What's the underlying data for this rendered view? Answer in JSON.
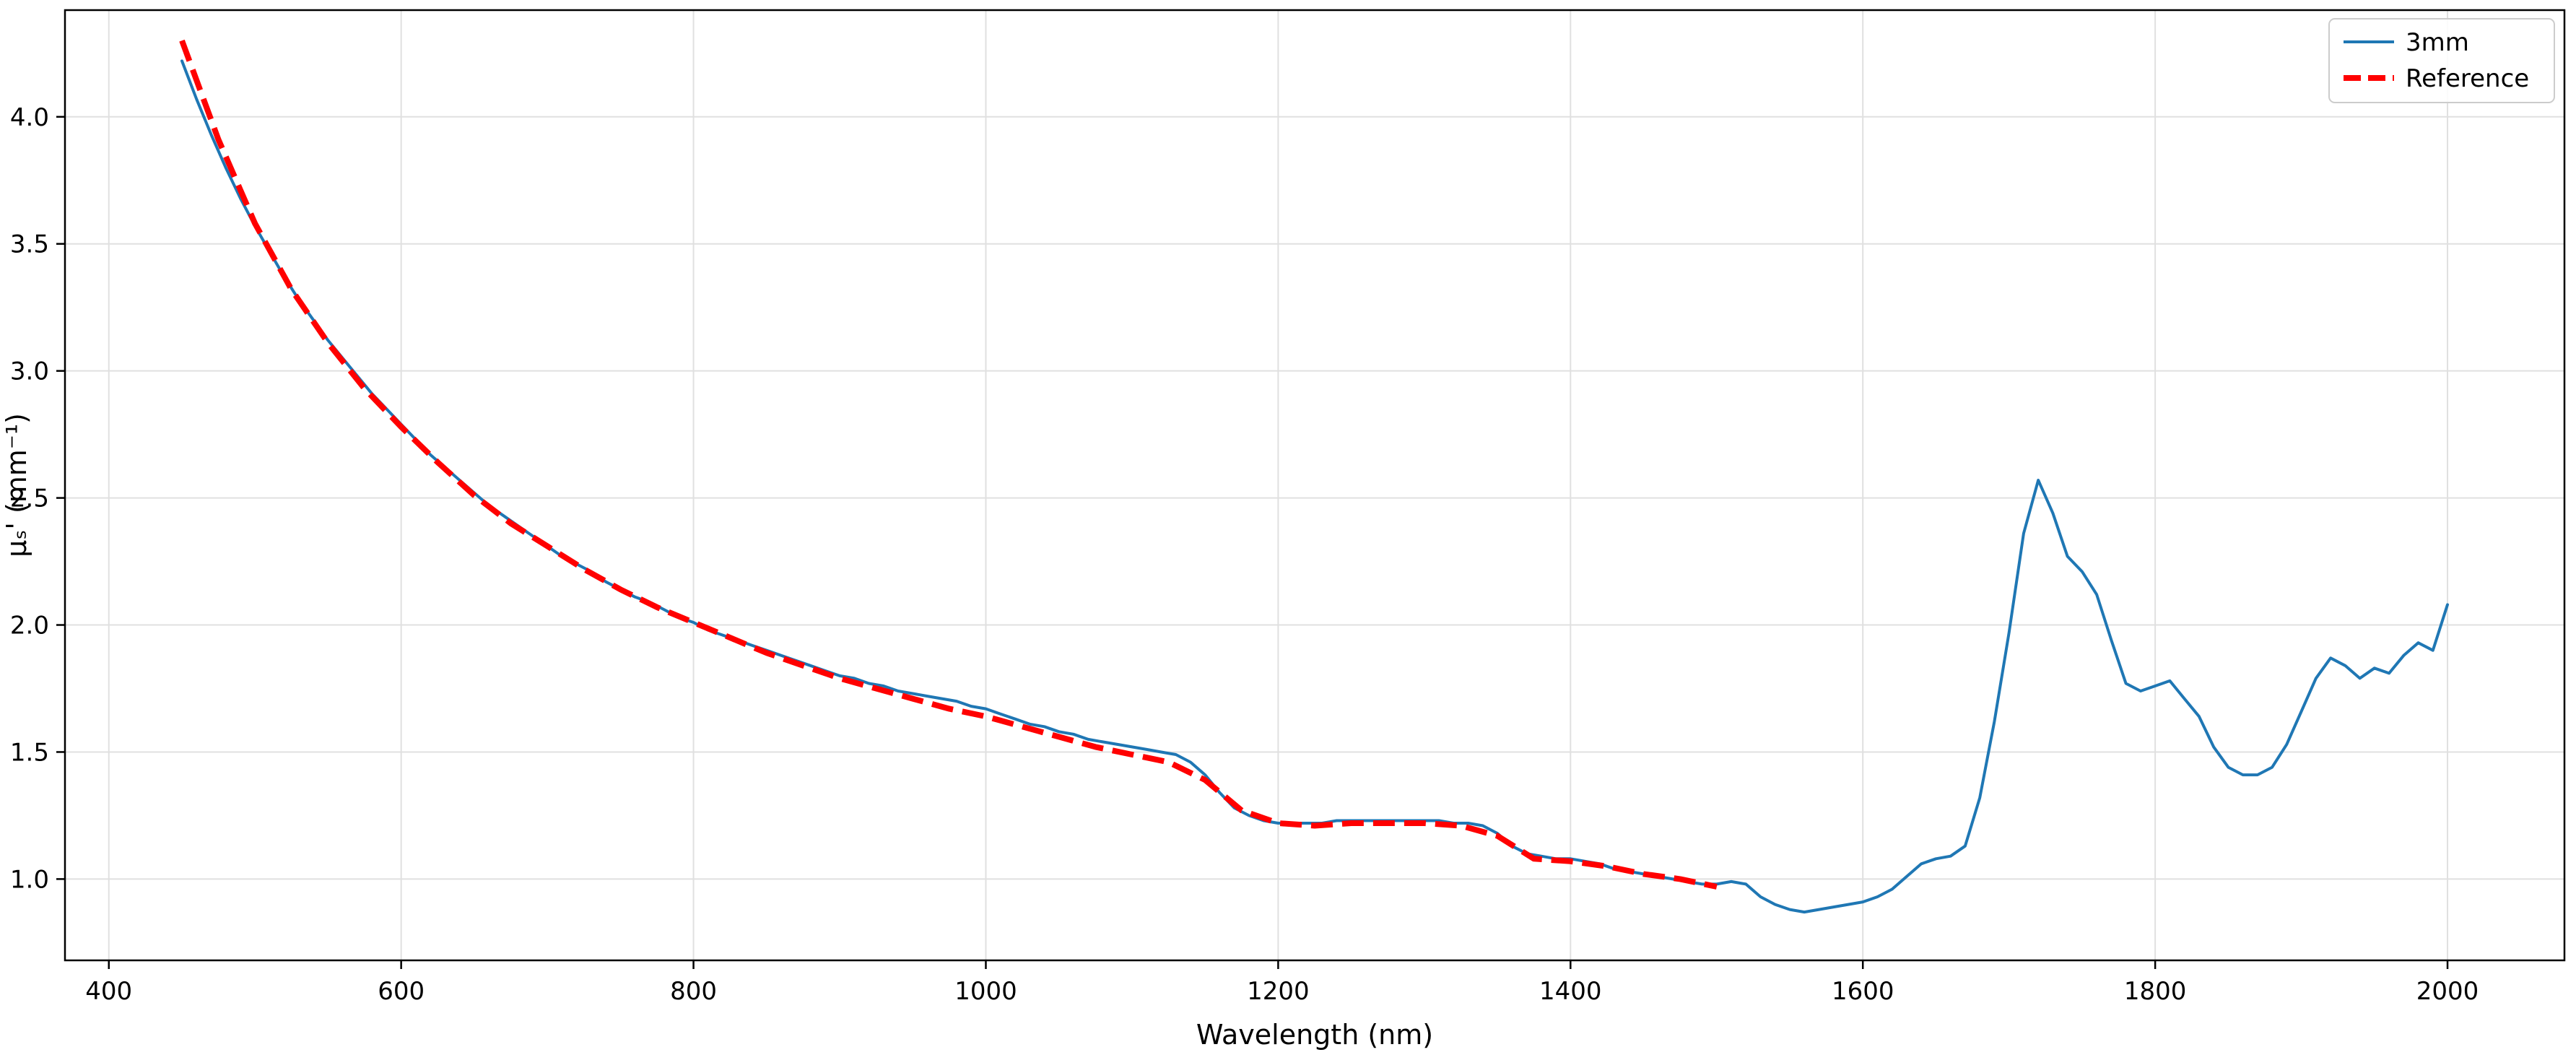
{
  "figure": {
    "background": "#ffffff"
  },
  "chart_data": {
    "type": "line",
    "title": "",
    "xlabel": "Wavelength (nm)",
    "ylabel": "μₛ' (mm⁻¹)",
    "xlim": [
      370,
      2080
    ],
    "ylim": [
      0.68,
      4.42
    ],
    "xticks": [
      400,
      600,
      800,
      1000,
      1200,
      1400,
      1600,
      1800,
      2000
    ],
    "yticks": [
      1.0,
      1.5,
      2.0,
      2.5,
      3.0,
      3.5,
      4.0
    ],
    "grid": true,
    "grid_color": "#e0e0e0",
    "axis_color": "#000000",
    "legend": {
      "position": "upper right",
      "frame": true,
      "border_color": "#cccccc",
      "background": "#ffffff"
    },
    "series": [
      {
        "name": "3mm",
        "color": "#1f77b4",
        "style": "solid",
        "width": 4,
        "points": [
          [
            450,
            4.22
          ],
          [
            460,
            4.07
          ],
          [
            470,
            3.93
          ],
          [
            480,
            3.8
          ],
          [
            490,
            3.68
          ],
          [
            500,
            3.57
          ],
          [
            510,
            3.47
          ],
          [
            520,
            3.37
          ],
          [
            530,
            3.28
          ],
          [
            540,
            3.2
          ],
          [
            550,
            3.12
          ],
          [
            560,
            3.05
          ],
          [
            570,
            2.98
          ],
          [
            580,
            2.91
          ],
          [
            590,
            2.85
          ],
          [
            600,
            2.79
          ],
          [
            610,
            2.73
          ],
          [
            620,
            2.67
          ],
          [
            630,
            2.62
          ],
          [
            640,
            2.57
          ],
          [
            650,
            2.52
          ],
          [
            660,
            2.47
          ],
          [
            670,
            2.43
          ],
          [
            680,
            2.39
          ],
          [
            690,
            2.35
          ],
          [
            700,
            2.31
          ],
          [
            710,
            2.27
          ],
          [
            720,
            2.24
          ],
          [
            730,
            2.21
          ],
          [
            740,
            2.17
          ],
          [
            750,
            2.14
          ],
          [
            760,
            2.11
          ],
          [
            770,
            2.09
          ],
          [
            780,
            2.06
          ],
          [
            790,
            2.03
          ],
          [
            800,
            2.01
          ],
          [
            810,
            1.98
          ],
          [
            820,
            1.96
          ],
          [
            830,
            1.94
          ],
          [
            840,
            1.92
          ],
          [
            850,
            1.9
          ],
          [
            860,
            1.88
          ],
          [
            870,
            1.86
          ],
          [
            880,
            1.84
          ],
          [
            890,
            1.82
          ],
          [
            900,
            1.8
          ],
          [
            910,
            1.79
          ],
          [
            920,
            1.77
          ],
          [
            930,
            1.76
          ],
          [
            940,
            1.74
          ],
          [
            950,
            1.73
          ],
          [
            960,
            1.72
          ],
          [
            970,
            1.71
          ],
          [
            980,
            1.7
          ],
          [
            990,
            1.68
          ],
          [
            1000,
            1.67
          ],
          [
            1010,
            1.65
          ],
          [
            1020,
            1.63
          ],
          [
            1030,
            1.61
          ],
          [
            1040,
            1.6
          ],
          [
            1050,
            1.58
          ],
          [
            1060,
            1.57
          ],
          [
            1070,
            1.55
          ],
          [
            1080,
            1.54
          ],
          [
            1090,
            1.53
          ],
          [
            1100,
            1.52
          ],
          [
            1110,
            1.51
          ],
          [
            1120,
            1.5
          ],
          [
            1130,
            1.49
          ],
          [
            1140,
            1.46
          ],
          [
            1150,
            1.41
          ],
          [
            1160,
            1.34
          ],
          [
            1170,
            1.28
          ],
          [
            1180,
            1.25
          ],
          [
            1190,
            1.23
          ],
          [
            1200,
            1.22
          ],
          [
            1210,
            1.22
          ],
          [
            1220,
            1.22
          ],
          [
            1230,
            1.22
          ],
          [
            1240,
            1.23
          ],
          [
            1250,
            1.23
          ],
          [
            1260,
            1.23
          ],
          [
            1270,
            1.23
          ],
          [
            1280,
            1.23
          ],
          [
            1290,
            1.23
          ],
          [
            1300,
            1.23
          ],
          [
            1310,
            1.23
          ],
          [
            1320,
            1.22
          ],
          [
            1330,
            1.22
          ],
          [
            1340,
            1.21
          ],
          [
            1350,
            1.18
          ],
          [
            1360,
            1.13
          ],
          [
            1370,
            1.1
          ],
          [
            1380,
            1.09
          ],
          [
            1390,
            1.08
          ],
          [
            1400,
            1.08
          ],
          [
            1410,
            1.07
          ],
          [
            1420,
            1.06
          ],
          [
            1430,
            1.04
          ],
          [
            1440,
            1.03
          ],
          [
            1450,
            1.02
          ],
          [
            1460,
            1.01
          ],
          [
            1470,
            1.0
          ],
          [
            1480,
            0.99
          ],
          [
            1490,
            0.98
          ],
          [
            1500,
            0.98
          ],
          [
            1510,
            0.99
          ],
          [
            1520,
            0.98
          ],
          [
            1530,
            0.93
          ],
          [
            1540,
            0.9
          ],
          [
            1550,
            0.88
          ],
          [
            1560,
            0.87
          ],
          [
            1570,
            0.88
          ],
          [
            1580,
            0.89
          ],
          [
            1590,
            0.9
          ],
          [
            1600,
            0.91
          ],
          [
            1610,
            0.93
          ],
          [
            1620,
            0.96
          ],
          [
            1630,
            1.01
          ],
          [
            1640,
            1.06
          ],
          [
            1650,
            1.08
          ],
          [
            1660,
            1.09
          ],
          [
            1670,
            1.13
          ],
          [
            1680,
            1.32
          ],
          [
            1690,
            1.62
          ],
          [
            1700,
            1.97
          ],
          [
            1710,
            2.36
          ],
          [
            1720,
            2.57
          ],
          [
            1730,
            2.44
          ],
          [
            1740,
            2.27
          ],
          [
            1750,
            2.21
          ],
          [
            1760,
            2.12
          ],
          [
            1770,
            1.94
          ],
          [
            1780,
            1.77
          ],
          [
            1790,
            1.74
          ],
          [
            1800,
            1.76
          ],
          [
            1810,
            1.78
          ],
          [
            1820,
            1.71
          ],
          [
            1830,
            1.64
          ],
          [
            1840,
            1.52
          ],
          [
            1850,
            1.44
          ],
          [
            1860,
            1.41
          ],
          [
            1870,
            1.41
          ],
          [
            1880,
            1.44
          ],
          [
            1890,
            1.53
          ],
          [
            1900,
            1.66
          ],
          [
            1910,
            1.79
          ],
          [
            1920,
            1.87
          ],
          [
            1930,
            1.84
          ],
          [
            1940,
            1.79
          ],
          [
            1950,
            1.83
          ],
          [
            1960,
            1.81
          ],
          [
            1970,
            1.88
          ],
          [
            1980,
            1.93
          ],
          [
            1990,
            1.9
          ],
          [
            2000,
            2.08
          ]
        ]
      },
      {
        "name": "Reference",
        "color": "#ff0000",
        "style": "dashed",
        "width": 8,
        "points": [
          [
            450,
            4.3
          ],
          [
            475,
            3.91
          ],
          [
            500,
            3.58
          ],
          [
            525,
            3.32
          ],
          [
            550,
            3.11
          ],
          [
            575,
            2.93
          ],
          [
            600,
            2.78
          ],
          [
            625,
            2.64
          ],
          [
            650,
            2.51
          ],
          [
            675,
            2.4
          ],
          [
            700,
            2.31
          ],
          [
            725,
            2.22
          ],
          [
            750,
            2.14
          ],
          [
            775,
            2.07
          ],
          [
            800,
            2.01
          ],
          [
            825,
            1.95
          ],
          [
            850,
            1.89
          ],
          [
            875,
            1.84
          ],
          [
            900,
            1.79
          ],
          [
            925,
            1.75
          ],
          [
            950,
            1.71
          ],
          [
            975,
            1.67
          ],
          [
            1000,
            1.64
          ],
          [
            1025,
            1.6
          ],
          [
            1050,
            1.56
          ],
          [
            1075,
            1.52
          ],
          [
            1100,
            1.49
          ],
          [
            1125,
            1.46
          ],
          [
            1150,
            1.39
          ],
          [
            1175,
            1.27
          ],
          [
            1200,
            1.22
          ],
          [
            1225,
            1.21
          ],
          [
            1250,
            1.22
          ],
          [
            1275,
            1.22
          ],
          [
            1300,
            1.22
          ],
          [
            1325,
            1.21
          ],
          [
            1350,
            1.17
          ],
          [
            1375,
            1.08
          ],
          [
            1400,
            1.07
          ],
          [
            1425,
            1.05
          ],
          [
            1450,
            1.02
          ],
          [
            1475,
            1.0
          ],
          [
            1500,
            0.97
          ]
        ]
      }
    ]
  }
}
